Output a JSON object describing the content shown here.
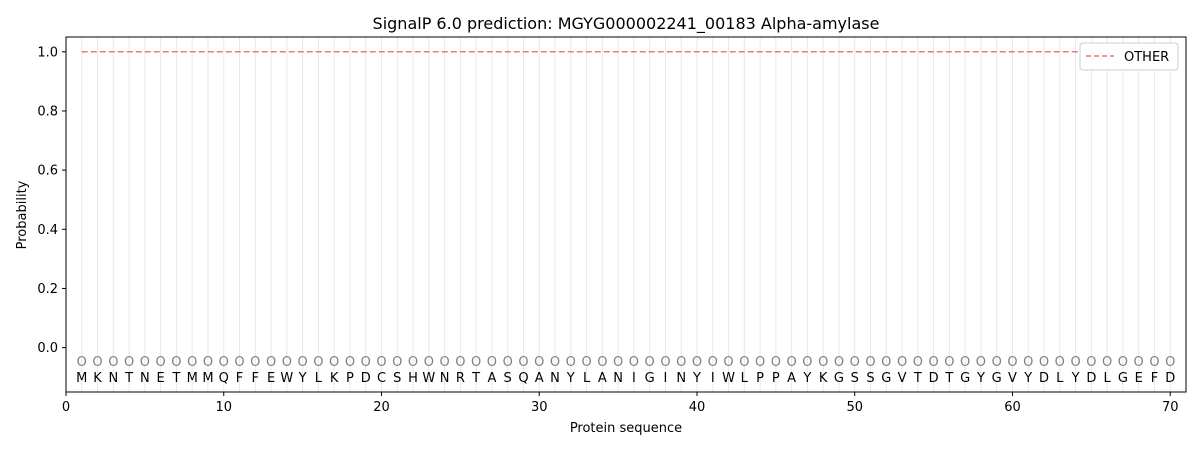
{
  "chart_data": {
    "type": "line",
    "title": "SignalP 6.0 prediction: MGYG000002241_00183 Alpha-amylase",
    "xlabel": "Protein sequence",
    "ylabel": "Probability",
    "xlim": [
      0,
      71
    ],
    "ylim": [
      -0.15,
      1.05
    ],
    "x_ticks": [
      0,
      10,
      20,
      30,
      40,
      50,
      60,
      70
    ],
    "y_ticks": [
      0.0,
      0.2,
      0.4,
      0.6,
      0.8,
      1.0
    ],
    "sequence": [
      "M",
      "K",
      "N",
      "T",
      "N",
      "E",
      "T",
      "M",
      "M",
      "Q",
      "F",
      "F",
      "E",
      "W",
      "Y",
      "L",
      "K",
      "P",
      "D",
      "C",
      "S",
      "H",
      "W",
      "N",
      "R",
      "T",
      "A",
      "S",
      "Q",
      "A",
      "N",
      "Y",
      "L",
      "A",
      "N",
      "I",
      "G",
      "I",
      "N",
      "Y",
      "I",
      "W",
      "L",
      "P",
      "P",
      "A",
      "Y",
      "K",
      "G",
      "S",
      "S",
      "G",
      "V",
      "T",
      "D",
      "T",
      "G",
      "Y",
      "G",
      "V",
      "Y",
      "D",
      "L",
      "Y",
      "D",
      "L",
      "G",
      "E",
      "F",
      "D"
    ],
    "state_labels": [
      "O",
      "O",
      "O",
      "O",
      "O",
      "O",
      "O",
      "O",
      "O",
      "O",
      "O",
      "O",
      "O",
      "O",
      "O",
      "O",
      "O",
      "O",
      "O",
      "O",
      "O",
      "O",
      "O",
      "O",
      "O",
      "O",
      "O",
      "O",
      "O",
      "O",
      "O",
      "O",
      "O",
      "O",
      "O",
      "O",
      "O",
      "O",
      "O",
      "O",
      "O",
      "O",
      "O",
      "O",
      "O",
      "O",
      "O",
      "O",
      "O",
      "O",
      "O",
      "O",
      "O",
      "O",
      "O",
      "O",
      "O",
      "O",
      "O",
      "O",
      "O",
      "O",
      "O",
      "O",
      "O",
      "O",
      "O",
      "O",
      "O",
      "O"
    ],
    "series": [
      {
        "name": "OTHER",
        "color": "#e87a7a",
        "style": "dashed",
        "x_start": 1,
        "x_end": 70,
        "value": 1.0
      }
    ],
    "grid": "vertical lines at each residue",
    "legend": "top-right"
  }
}
